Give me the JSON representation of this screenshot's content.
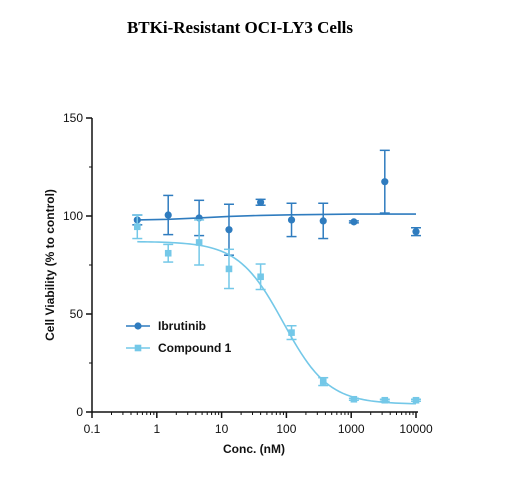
{
  "chart_data": {
    "type": "scatter",
    "title": "BTKi-Resistant OCI-LY3 Cells",
    "xlabel": "Conc. (nM)",
    "ylabel": "Cell Viability (% to control)",
    "xscale": "log",
    "xlim": [
      0.1,
      10000
    ],
    "ylim": [
      0,
      150
    ],
    "x_ticks": [
      "0.1",
      "1",
      "10",
      "100",
      "1000",
      "10000"
    ],
    "y_ticks": [
      "0",
      "50",
      "100",
      "150"
    ],
    "grid": false,
    "legend_position": "center-left",
    "series": [
      {
        "name": "Ibrutinib",
        "color": "#2f7cbf",
        "marker": "circle",
        "fit": "flat",
        "x": [
          0.5,
          1.5,
          4.5,
          13,
          40,
          120,
          370,
          1100,
          3300,
          10000
        ],
        "y": [
          98,
          100.5,
          99,
          93,
          107,
          98,
          97.5,
          97,
          117.5,
          92
        ],
        "err": [
          2.5,
          10,
          9,
          13,
          1.5,
          8.5,
          9,
          0.5,
          16,
          2
        ],
        "fit_y": [
          98,
          98.3,
          99,
          99.8,
          100.3,
          100.6,
          100.8,
          101,
          101,
          101
        ]
      },
      {
        "name": "Compound 1",
        "color": "#74c8e8",
        "marker": "square",
        "fit": "sigmoid",
        "x": [
          0.5,
          1.5,
          4.5,
          13,
          40,
          120,
          370,
          1100,
          3300,
          10000
        ],
        "y": [
          94.5,
          81,
          86.5,
          73,
          69,
          40.5,
          15.5,
          6.5,
          6,
          6
        ],
        "err": [
          6,
          4.5,
          11.5,
          10,
          6.5,
          3.5,
          2,
          0.5,
          0.5,
          0.5
        ],
        "fit_params": {
          "top": 87,
          "bottom": 4,
          "ic50": 90,
          "hill": 1.25
        }
      }
    ]
  }
}
